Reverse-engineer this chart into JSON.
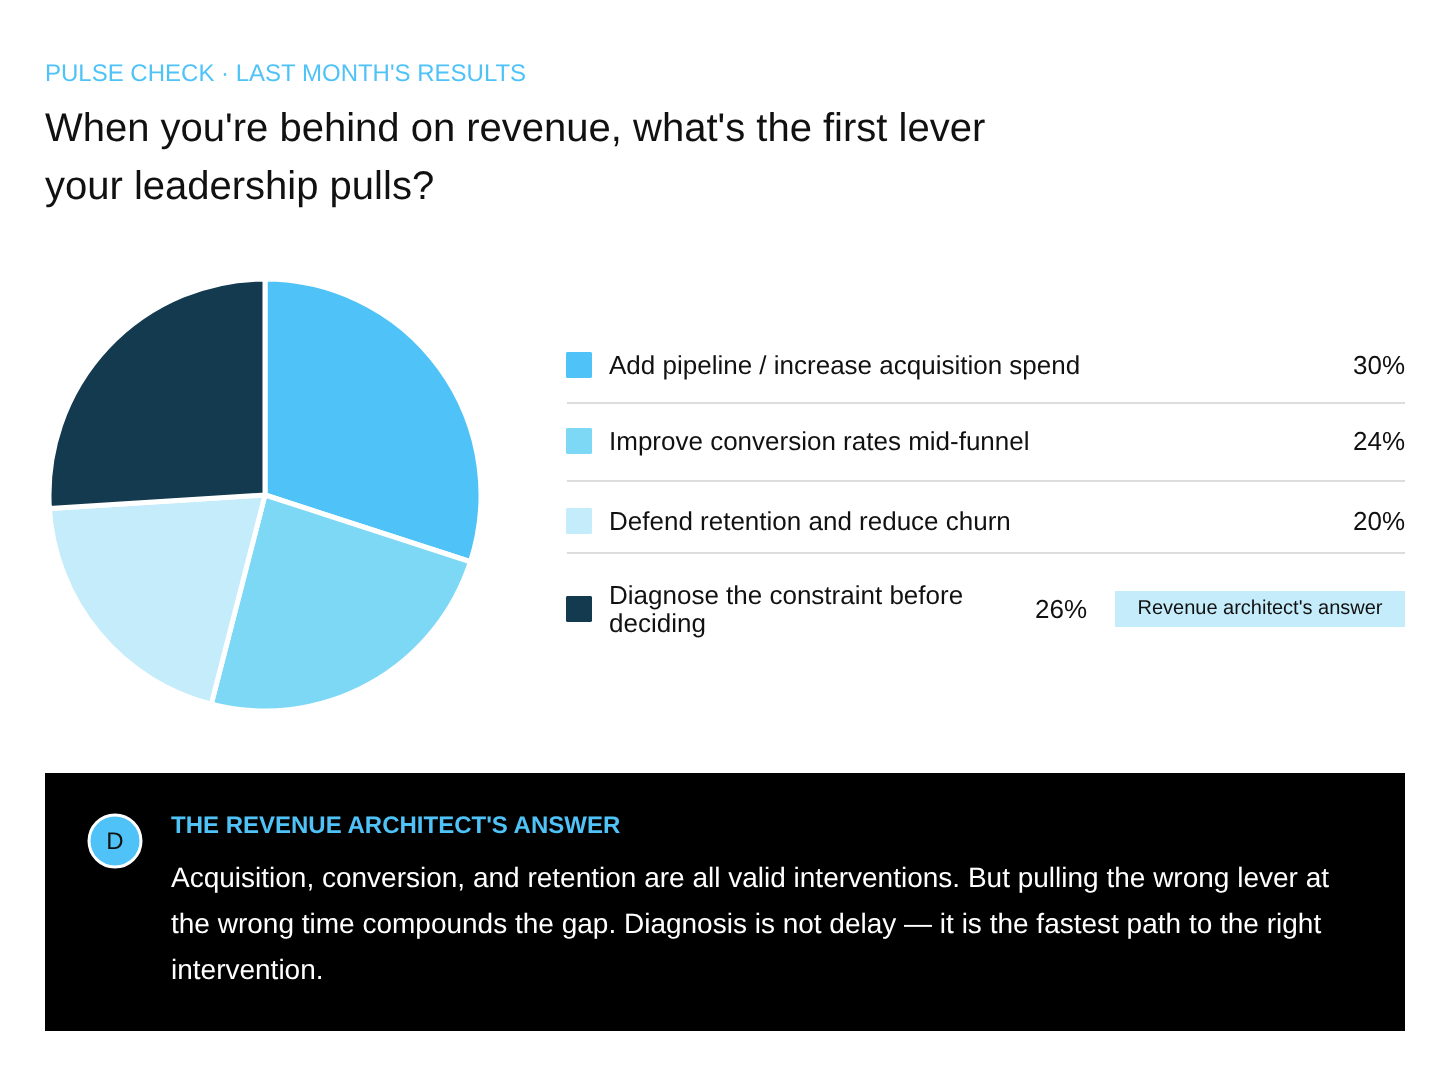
{
  "chart_data": {
    "type": "pie",
    "subtitle": "PULSE CHECK · LAST MONTH'S RESULTS",
    "title": "When you're behind on revenue, what's the first lever your leadership pulls?",
    "categories": [
      "Add pipeline / increase acquisition spend",
      "Improve conversion rates mid-funnel",
      "Defend retention and reduce churn",
      "Diagnose the constraint before deciding"
    ],
    "values": [
      30,
      24,
      20,
      26
    ],
    "colors": [
      "#4fc3f7",
      "#7dd8f5",
      "#c5ecfa",
      "#133a4f"
    ],
    "value_labels": [
      "30%",
      "24%",
      "20%",
      "26%"
    ],
    "legend": "right",
    "annotations": [
      {
        "text": "Revenue architect's answer",
        "x": "Diagnose the constraint before deciding"
      },
      "D",
      "THE REVENUE ARCHITECT'S ANSWER",
      "Acquisition, conversion, and retention are all valid interventions. But pulling the wrong lever at the wrong time compounds the gap. Diagnosis is not delay — it is the fastest path to the right intervention."
    ]
  }
}
